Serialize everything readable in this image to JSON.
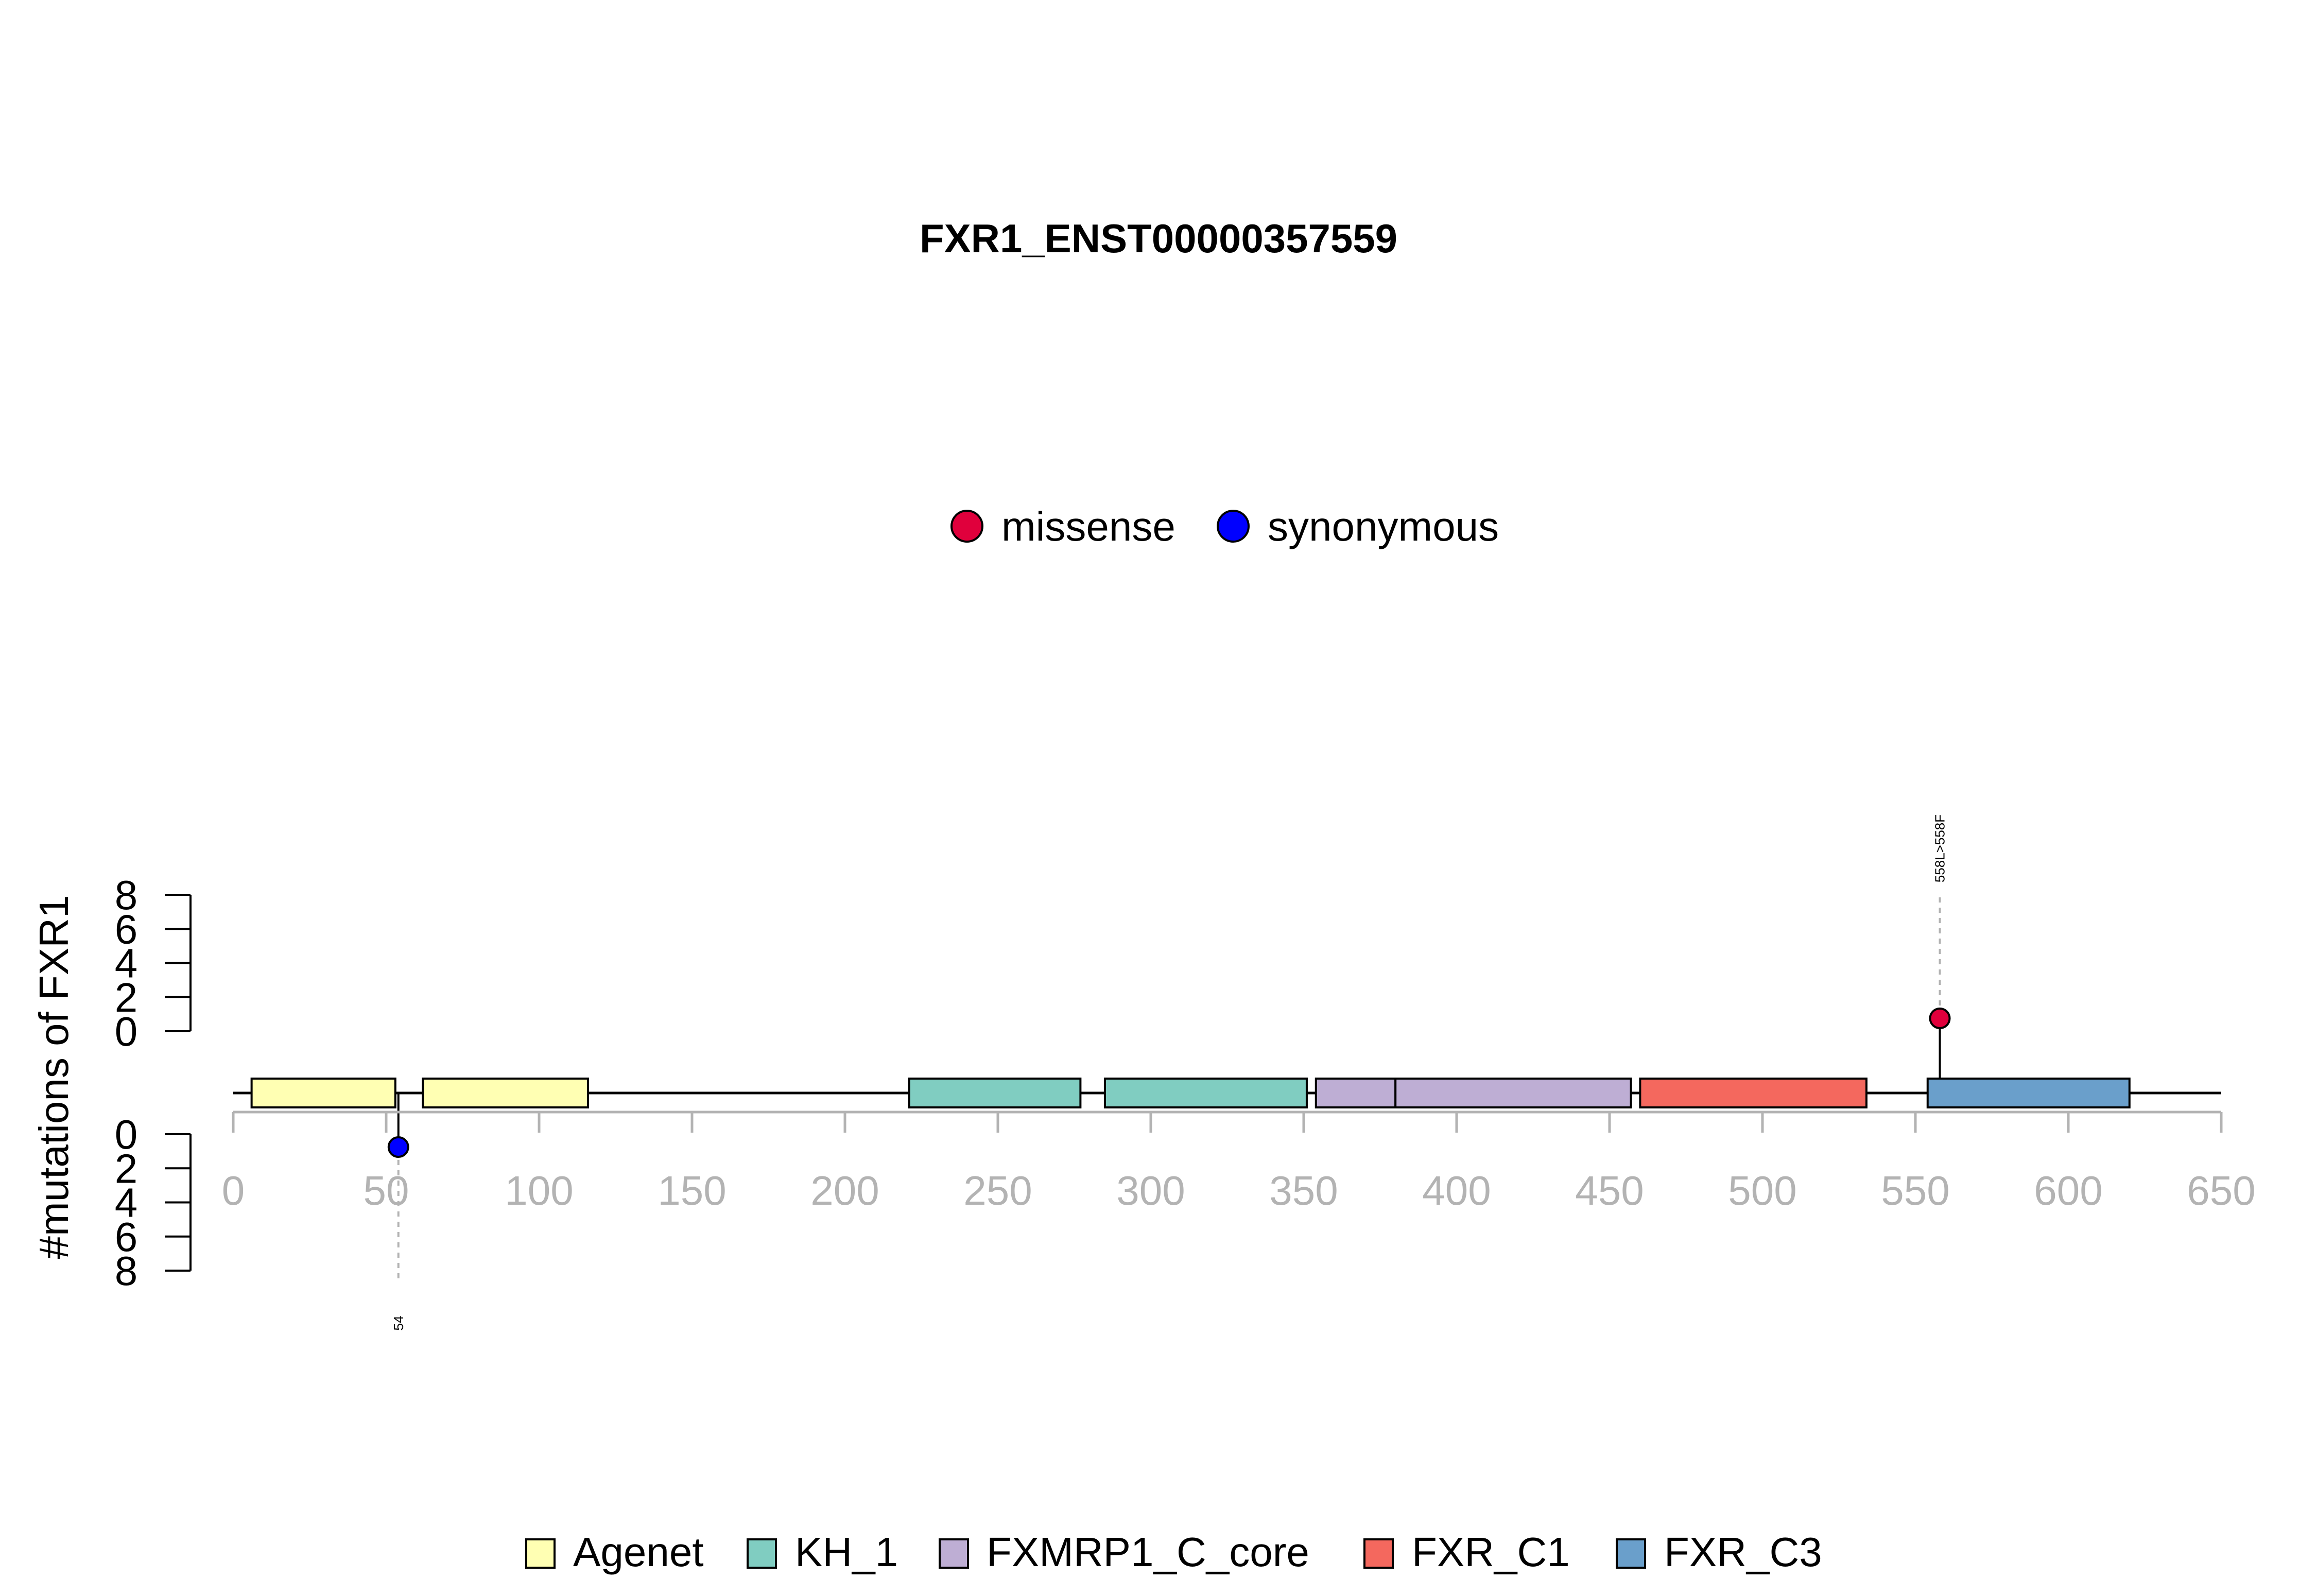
{
  "chart_data": {
    "type": "lollipop",
    "title": "FXR1_ENST00000357559",
    "ylabel": "#mutations of FXR1",
    "xlim": [
      0,
      650
    ],
    "x_ticks": [
      0,
      50,
      100,
      150,
      200,
      250,
      300,
      350,
      400,
      450,
      500,
      550,
      600,
      650
    ],
    "y_ticks": [
      0,
      2,
      4,
      6,
      8
    ],
    "ylim": [
      0,
      8
    ],
    "protein_length": 650,
    "mutation_legend": [
      {
        "name": "missense",
        "color": "#E0003C"
      },
      {
        "name": "synonymous",
        "color": "#0000FF"
      }
    ],
    "domain_legend": [
      {
        "name": "Agenet",
        "color": "#FFFFB3"
      },
      {
        "name": "KH_1",
        "color": "#80CDC1"
      },
      {
        "name": "FXMRP1_C_core",
        "color": "#BEAED4"
      },
      {
        "name": "FXR_C1",
        "color": "#F4685E"
      },
      {
        "name": "FXR_C3",
        "color": "#6A9FCB"
      }
    ],
    "domains": [
      {
        "name": "Agenet",
        "start": 6,
        "end": 53
      },
      {
        "name": "Agenet",
        "start": 62,
        "end": 116
      },
      {
        "name": "KH_1",
        "start": 221,
        "end": 277
      },
      {
        "name": "KH_1",
        "start": 285,
        "end": 351
      },
      {
        "name": "FXMRP1_C_core",
        "start": 354,
        "end": 380
      },
      {
        "name": "FXMRP1_C_core",
        "start": 380,
        "end": 457
      },
      {
        "name": "FXR_C1",
        "start": 460,
        "end": 534
      },
      {
        "name": "FXR_C3",
        "start": 554,
        "end": 620
      }
    ],
    "mutations": [
      {
        "position": 558,
        "type": "missense",
        "count": 1,
        "label": "558L>558F",
        "side": "top"
      },
      {
        "position": 54,
        "type": "synonymous",
        "count": 1,
        "label": "54",
        "side": "bottom"
      }
    ],
    "grid": false
  }
}
